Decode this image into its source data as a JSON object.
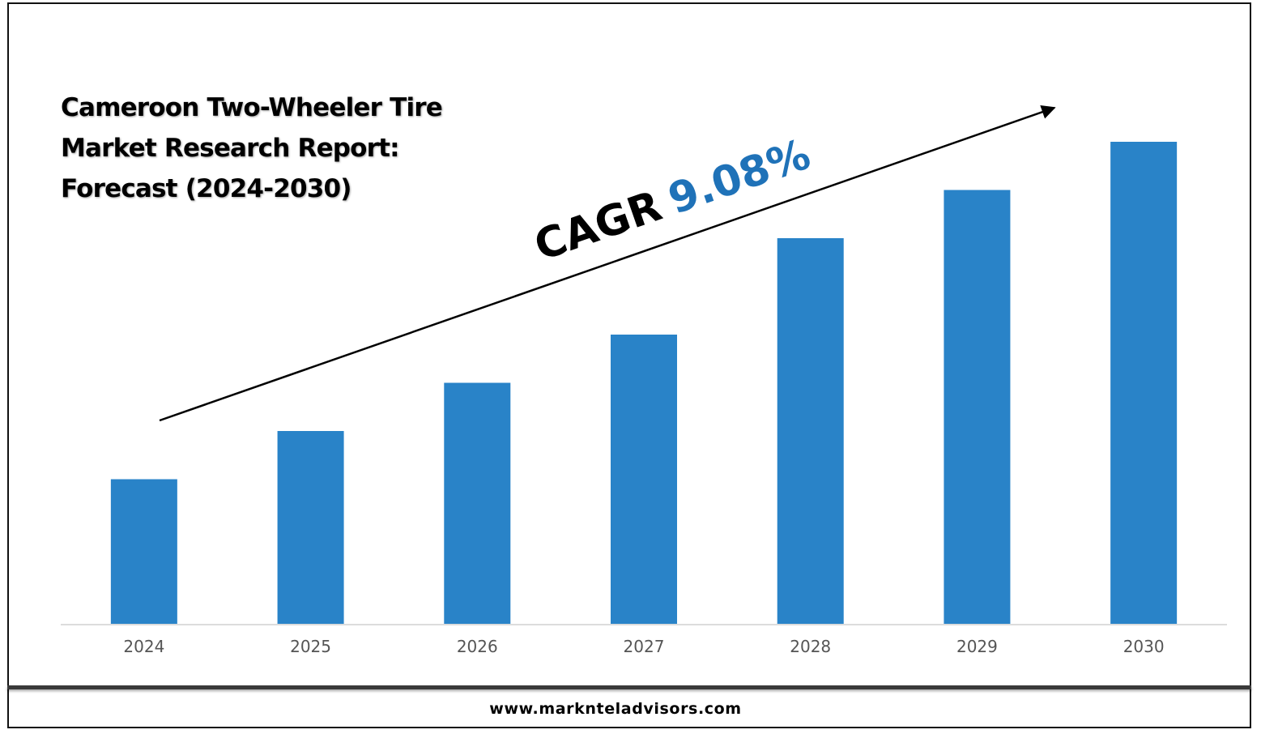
{
  "title": "Cameroon Two-Wheeler Tire Market Research Report: Forecast (2024-2030)",
  "cagr": {
    "label": "CAGR",
    "value": "9.08%"
  },
  "footer": {
    "url": "www.marknteladvisors.com"
  },
  "colors": {
    "bar": "#2983c8",
    "cagr_value": "#1f72b8",
    "arrow": "#000000"
  },
  "chart_data": {
    "type": "bar",
    "title": "Cameroon Two-Wheeler Tire Market Research Report: Forecast (2024-2030)",
    "categories": [
      "2024",
      "2025",
      "2026",
      "2027",
      "2028",
      "2029",
      "2030"
    ],
    "values": [
      30,
      40,
      50,
      60,
      80,
      90,
      100
    ],
    "xlabel": "",
    "ylabel": "",
    "ylim": [
      0,
      100
    ],
    "grid": false,
    "legend": "none"
  }
}
